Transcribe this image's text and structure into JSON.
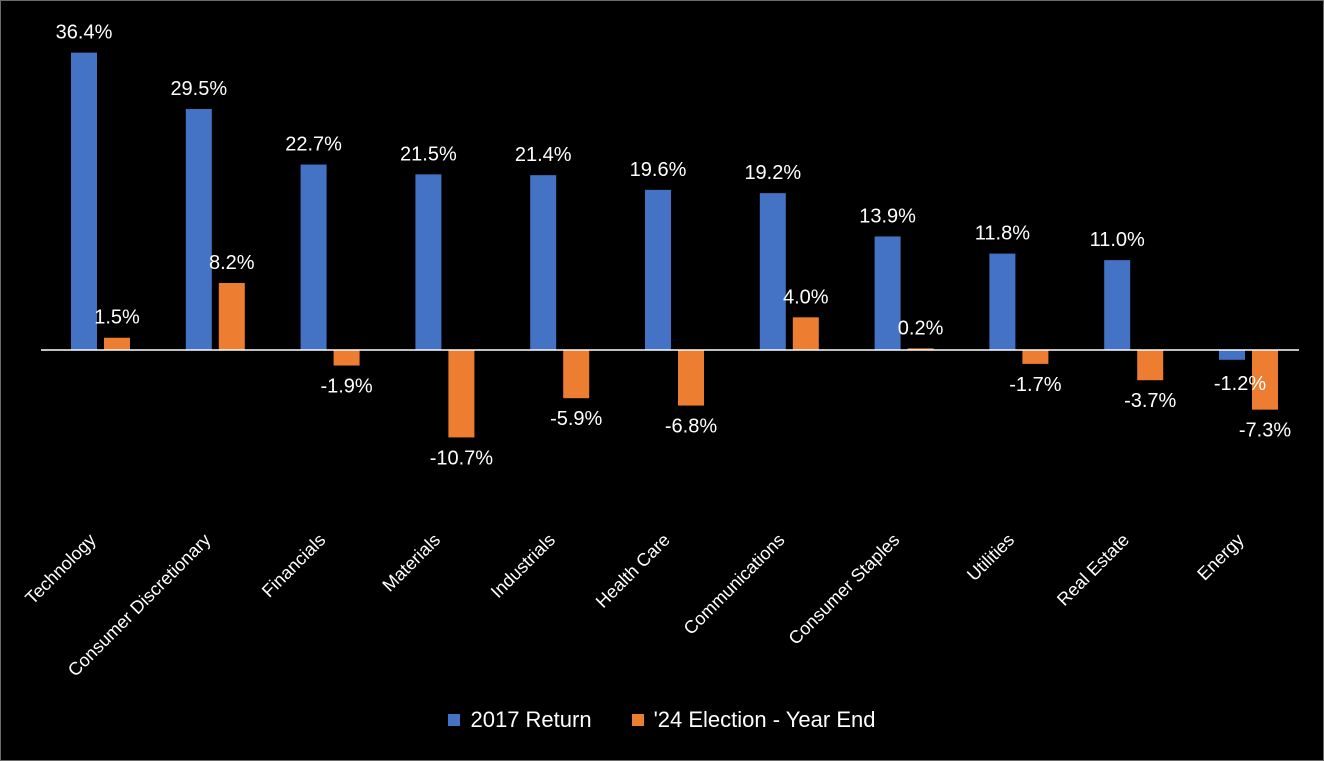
{
  "chart_data": {
    "type": "bar",
    "title": "",
    "xlabel": "",
    "ylabel": "",
    "categories": [
      "Technology",
      "Consumer Discretionary",
      "Financials",
      "Materials",
      "Industrials",
      "Health Care",
      "Communications",
      "Consumer Staples",
      "Utilities",
      "Real Estate",
      "Energy"
    ],
    "series": [
      {
        "name": "2017 Return",
        "color": "#4472C4",
        "values": [
          36.4,
          29.5,
          22.7,
          21.5,
          21.4,
          19.6,
          19.2,
          13.9,
          11.8,
          11.0,
          -1.2
        ],
        "labels": [
          "36.4%",
          "29.5%",
          "22.7%",
          "21.5%",
          "21.4%",
          "19.6%",
          "19.2%",
          "13.9%",
          "11.8%",
          "11.0%",
          "-1.2%"
        ]
      },
      {
        "name": "'24 Election - Year End",
        "color": "#ED7D31",
        "values": [
          1.5,
          8.2,
          -1.9,
          -10.7,
          -5.9,
          -6.8,
          4.0,
          0.2,
          -1.7,
          -3.7,
          -7.3
        ],
        "labels": [
          "1.5%",
          "8.2%",
          "-1.9%",
          "-10.7%",
          "-5.9%",
          "-6.8%",
          "4.0%",
          "0.2%",
          "-1.7%",
          "-3.7%",
          "-7.3%"
        ]
      }
    ],
    "ylim": [
      -12,
      40
    ],
    "grid": false,
    "legend_position": "bottom",
    "zero_line_color": "#ffffff",
    "background": "#000000"
  }
}
